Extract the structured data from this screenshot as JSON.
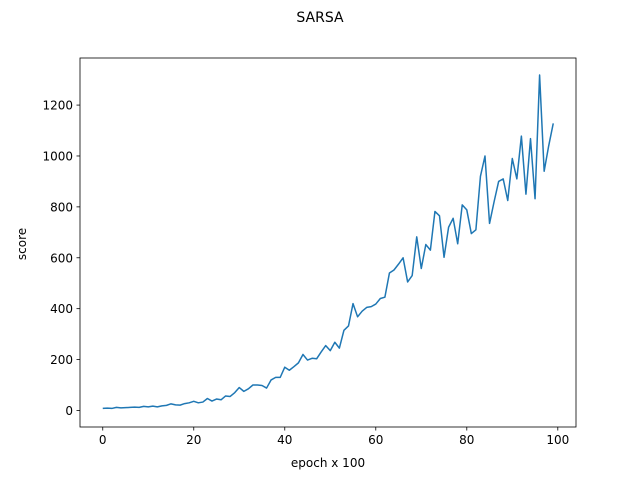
{
  "chart_data": {
    "type": "line",
    "title": "SARSA",
    "xlabel": "epoch x 100",
    "ylabel": "score",
    "xlim": [
      -5,
      104
    ],
    "ylim": [
      -65,
      1385
    ],
    "xticks": [
      0,
      20,
      40,
      60,
      80,
      100
    ],
    "yticks": [
      0,
      200,
      400,
      600,
      800,
      1000,
      1200
    ],
    "grid": false,
    "line_color": "#1f77b4",
    "series": [
      {
        "x": [
          0,
          1,
          2,
          3,
          4,
          5,
          6,
          7,
          8,
          9,
          10,
          11,
          12,
          13,
          14,
          15,
          16,
          17,
          18,
          19,
          20,
          21,
          22,
          23,
          24,
          25,
          26,
          27,
          28,
          29,
          30,
          31,
          32,
          33,
          34,
          35,
          36,
          37,
          38,
          39,
          40,
          41,
          42,
          43,
          44,
          45,
          46,
          47,
          48,
          49,
          50,
          51,
          52,
          53,
          54,
          55,
          56,
          57,
          58,
          59,
          60,
          61,
          62,
          63,
          64,
          65,
          66,
          67,
          68,
          69,
          70,
          71,
          72,
          73,
          74,
          75,
          76,
          77,
          78,
          79,
          80,
          81,
          82,
          83,
          84,
          85,
          86,
          87,
          88,
          89,
          90,
          91,
          92,
          93,
          94,
          95,
          96,
          97,
          98,
          99
        ],
        "values": [
          8,
          9,
          8,
          12,
          10,
          11,
          12,
          13,
          12,
          16,
          14,
          17,
          14,
          18,
          20,
          26,
          22,
          21,
          27,
          30,
          36,
          30,
          33,
          47,
          37,
          45,
          42,
          57,
          55,
          70,
          90,
          75,
          85,
          100,
          100,
          98,
          88,
          120,
          130,
          130,
          170,
          158,
          172,
          187,
          220,
          198,
          205,
          203,
          230,
          255,
          235,
          268,
          245,
          315,
          332,
          420,
          368,
          390,
          405,
          408,
          418,
          440,
          445,
          540,
          552,
          575,
          600,
          505,
          530,
          682,
          558,
          652,
          630,
          782,
          765,
          602,
          720,
          755,
          655,
          808,
          788,
          695,
          710,
          920,
          1000,
          735,
          820,
          900,
          910,
          825,
          990,
          910,
          1078,
          850,
          1068,
          832,
          1318,
          940,
          1040,
          1128
        ]
      }
    ]
  }
}
